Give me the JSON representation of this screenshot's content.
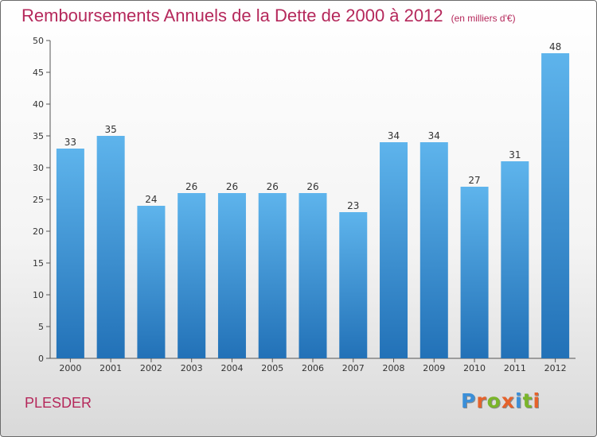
{
  "header": {
    "title": "Remboursements Annuels de la Dette de 2000 à 2012",
    "subtitle": "(en milliers d'€)"
  },
  "commune": "PLESDER",
  "logo": {
    "text": "Proxiti",
    "colors": [
      "#3b8fd8",
      "#e5622b",
      "#7ab52a",
      "#e5622b",
      "#3b8fd8",
      "#7ab52a",
      "#e5622b"
    ]
  },
  "colors": {
    "bar_top": "#5eb4ec",
    "bar_bottom": "#2271b7"
  },
  "chart_data": {
    "type": "bar",
    "categories": [
      "2000",
      "2001",
      "2002",
      "2003",
      "2004",
      "2005",
      "2006",
      "2007",
      "2008",
      "2009",
      "2010",
      "2011",
      "2012"
    ],
    "values": [
      33,
      35,
      24,
      26,
      26,
      26,
      26,
      23,
      34,
      34,
      27,
      31,
      48
    ],
    "ylim": [
      0,
      50
    ],
    "yticks": [
      0,
      5,
      10,
      15,
      20,
      25,
      30,
      35,
      40,
      45,
      50
    ],
    "grid": false,
    "data_labels": true
  }
}
